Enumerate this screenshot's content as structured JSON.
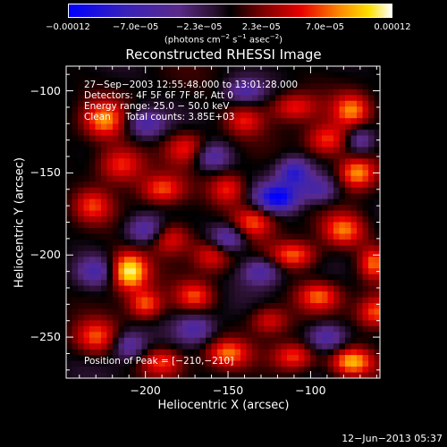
{
  "chart_data": {
    "type": "heatmap",
    "title": "Reconstructed RHESSI Image",
    "xlabel": "Heliocentric X (arcsec)",
    "ylabel": "Heliocentric Y (arcsec)",
    "xlim": [
      -248,
      -58
    ],
    "ylim": [
      -275,
      -85
    ],
    "xticks": [
      -200,
      -150,
      -100
    ],
    "xtick_labels": [
      "−200",
      "−150",
      "−100"
    ],
    "yticks": [
      -100,
      -150,
      -200,
      -250
    ],
    "ytick_labels": [
      "−100",
      "−150",
      "−200",
      "−250"
    ],
    "colorbar": {
      "min": -0.00012,
      "max": 0.00012,
      "tick_values": [
        -0.00012,
        -7e-05,
        -2.3e-05,
        2.3e-05,
        7e-05,
        0.00012
      ],
      "tick_labels": [
        "−0.00012",
        "−7.0e−05",
        "−2.3e−05",
        "2.3e−05",
        "7.0e−05",
        "0.00012"
      ],
      "units_main": "(photons cm",
      "units_exp1": "−2",
      "units_mid": " s",
      "units_exp2": "−1",
      "units_end": " asec",
      "units_exp3": "−2",
      "units_close": ")"
    },
    "annotations": {
      "line1": "27−Sep−2003 12:55:48.000 to 13:01:28.000",
      "line2": "Detectors: 4F 5F 6F 7F 8F, Att 0",
      "line3": "Energy range: 25.0 − 50.0 keV",
      "line4": "Clean     Total counts: 3.85E+03",
      "peak": "Position of Peak = [−210,−210]"
    },
    "peak_position": [
      -210,
      -210
    ],
    "total_counts": 3850,
    "energy_range_kev": [
      25.0,
      50.0
    ],
    "date_stamp": "12−Jun−2013 05:37"
  }
}
